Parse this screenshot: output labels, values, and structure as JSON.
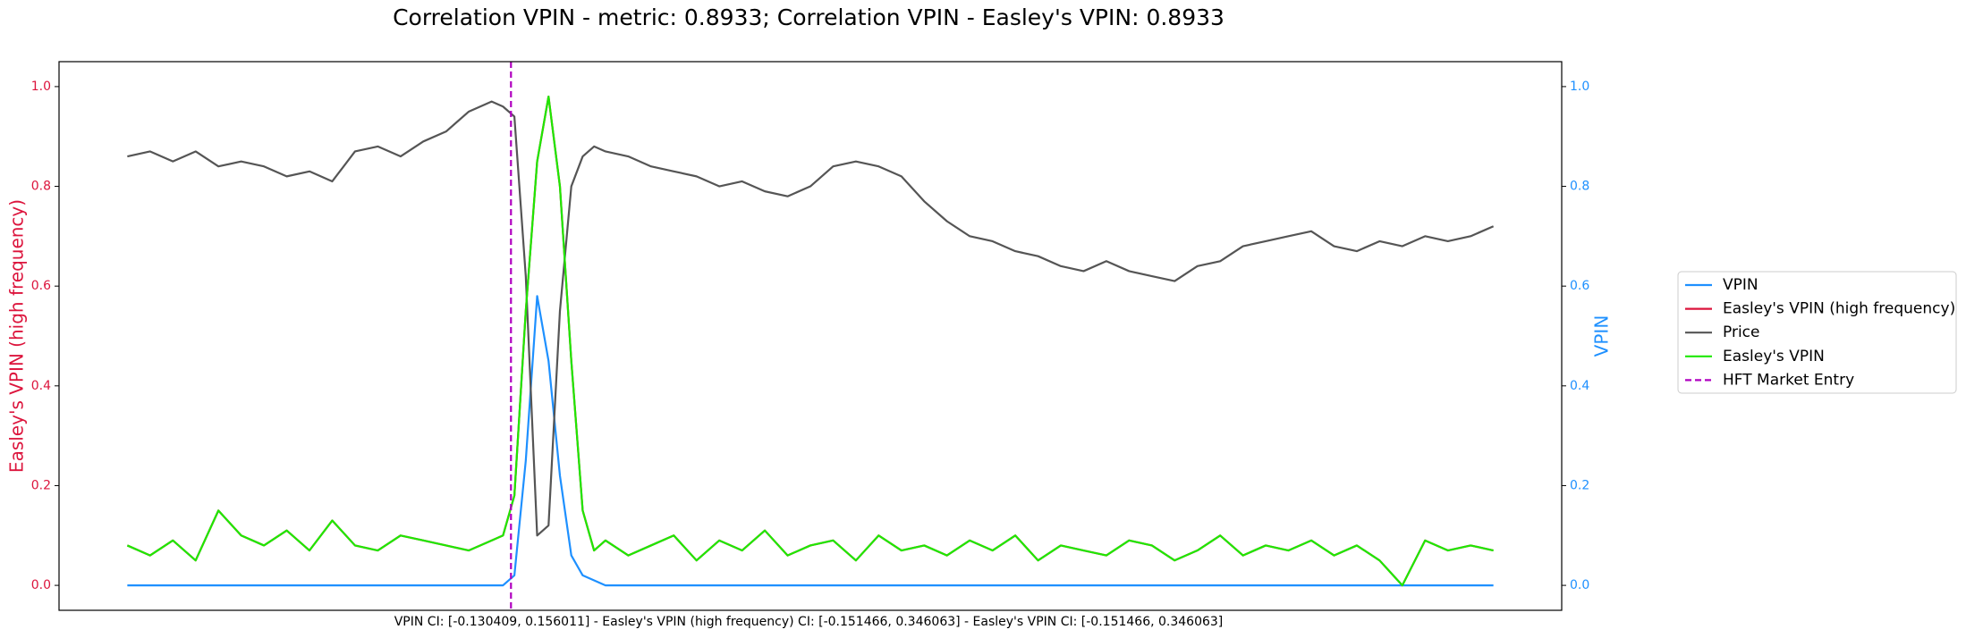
{
  "chart_data": {
    "type": "line",
    "title": "Correlation VPIN - metric: 0.8933; Correlation VPIN - Easley's VPIN: 0.8933",
    "xlabel": "VPIN CI: [-0.130409, 0.156011] - Easley's VPIN (high frequency) CI: [-0.151466, 0.346063] - Easley's VPIN CI: [-0.151466, 0.346063]",
    "ylabel": "Easley's VPIN (high frequency)",
    "y2label": "VPIN",
    "ylabel_color": "#dc143c",
    "y2label_color": "#1e90ff",
    "x": [
      0,
      2,
      4,
      6,
      8,
      10,
      12,
      14,
      16,
      18,
      20,
      22,
      24,
      26,
      28,
      30,
      32,
      33,
      34,
      35,
      36,
      37,
      38,
      39,
      40,
      41,
      42,
      44,
      46,
      48,
      50,
      52,
      54,
      56,
      58,
      60,
      62,
      64,
      66,
      68,
      70,
      72,
      74,
      76,
      78,
      80,
      82,
      84,
      86,
      88,
      90,
      92,
      94,
      96,
      98,
      100,
      102,
      104,
      106,
      108,
      110,
      112,
      114,
      116,
      118,
      120
    ],
    "xlim": [
      -6,
      126
    ],
    "ylim": [
      -0.05,
      1.05
    ],
    "y2lim": [
      -0.05,
      1.05
    ],
    "yticks": [
      {
        "value": 0,
        "label": "0.0"
      },
      {
        "value": 0.2,
        "label": "0.2"
      },
      {
        "value": 0.4,
        "label": "0.4"
      },
      {
        "value": 0.6,
        "label": "0.6"
      },
      {
        "value": 0.8,
        "label": "0.8"
      },
      {
        "value": 1,
        "label": "1.0"
      }
    ],
    "y2ticks": [
      {
        "value": 0,
        "label": "0.0"
      },
      {
        "value": 0.2,
        "label": "0.2"
      },
      {
        "value": 0.4,
        "label": "0.4"
      },
      {
        "value": 0.6,
        "label": "0.6"
      },
      {
        "value": 0.8,
        "label": "0.8"
      },
      {
        "value": 1,
        "label": "1.0"
      }
    ],
    "legend": "right",
    "series": [
      {
        "name": "VPIN",
        "color": "#1e90ff",
        "axis": "y2",
        "values": [
          0,
          0,
          0,
          0,
          0,
          0,
          0,
          0,
          0,
          0,
          0,
          0,
          0,
          0,
          0,
          0,
          0,
          0,
          0.02,
          0.25,
          0.58,
          0.45,
          0.22,
          0.06,
          0.02,
          0.01,
          0,
          0,
          0,
          0,
          0,
          0,
          0,
          0,
          0,
          0,
          0,
          0,
          0,
          0,
          0,
          0,
          0,
          0,
          0,
          0,
          0,
          0,
          0,
          0,
          0,
          0,
          0,
          0,
          0,
          0,
          0,
          0,
          0,
          0,
          0,
          0,
          0,
          0,
          0,
          0
        ]
      },
      {
        "name": "Easley's VPIN (high frequency)",
        "color": "#dc143c",
        "values": [
          0.08,
          0.06,
          0.09,
          0.05,
          0.15,
          0.1,
          0.08,
          0.11,
          0.07,
          0.13,
          0.08,
          0.07,
          0.1,
          0.09,
          0.08,
          0.07,
          0.09,
          0.1,
          0.18,
          0.55,
          0.85,
          0.98,
          0.8,
          0.45,
          0.15,
          0.07,
          0.09,
          0.06,
          0.08,
          0.1,
          0.05,
          0.09,
          0.07,
          0.11,
          0.06,
          0.08,
          0.09,
          0.05,
          0.1,
          0.07,
          0.08,
          0.06,
          0.09,
          0.07,
          0.1,
          0.05,
          0.08,
          0.07,
          0.06,
          0.09,
          0.08,
          0.05,
          0.07,
          0.1,
          0.06,
          0.08,
          0.07,
          0.09,
          0.06,
          0.08,
          0.05,
          0.0,
          0.09,
          0.07,
          0.08,
          0.07
        ]
      },
      {
        "name": "Price",
        "color": "#555555",
        "values": [
          0.86,
          0.87,
          0.85,
          0.87,
          0.84,
          0.85,
          0.84,
          0.82,
          0.83,
          0.81,
          0.87,
          0.88,
          0.86,
          0.89,
          0.91,
          0.95,
          0.97,
          0.96,
          0.94,
          0.62,
          0.1,
          0.12,
          0.55,
          0.8,
          0.86,
          0.88,
          0.87,
          0.86,
          0.84,
          0.83,
          0.82,
          0.8,
          0.81,
          0.79,
          0.78,
          0.8,
          0.84,
          0.85,
          0.84,
          0.82,
          0.77,
          0.73,
          0.7,
          0.69,
          0.67,
          0.66,
          0.64,
          0.63,
          0.65,
          0.63,
          0.62,
          0.61,
          0.64,
          0.65,
          0.68,
          0.69,
          0.7,
          0.71,
          0.68,
          0.67,
          0.69,
          0.68,
          0.7,
          0.69,
          0.7,
          0.72
        ]
      },
      {
        "name": "Easley's VPIN",
        "color": "#1ee800",
        "values": [
          0.08,
          0.06,
          0.09,
          0.05,
          0.15,
          0.1,
          0.08,
          0.11,
          0.07,
          0.13,
          0.08,
          0.07,
          0.1,
          0.09,
          0.08,
          0.07,
          0.09,
          0.1,
          0.18,
          0.55,
          0.85,
          0.98,
          0.8,
          0.45,
          0.15,
          0.07,
          0.09,
          0.06,
          0.08,
          0.1,
          0.05,
          0.09,
          0.07,
          0.11,
          0.06,
          0.08,
          0.09,
          0.05,
          0.1,
          0.07,
          0.08,
          0.06,
          0.09,
          0.07,
          0.1,
          0.05,
          0.08,
          0.07,
          0.06,
          0.09,
          0.08,
          0.05,
          0.07,
          0.1,
          0.06,
          0.08,
          0.07,
          0.09,
          0.06,
          0.08,
          0.05,
          0.0,
          0.09,
          0.07,
          0.08,
          0.07
        ]
      }
    ],
    "vline": {
      "name": "HFT Market Entry",
      "x": 33.7,
      "color": "#b000c0",
      "style": "dashed"
    }
  }
}
